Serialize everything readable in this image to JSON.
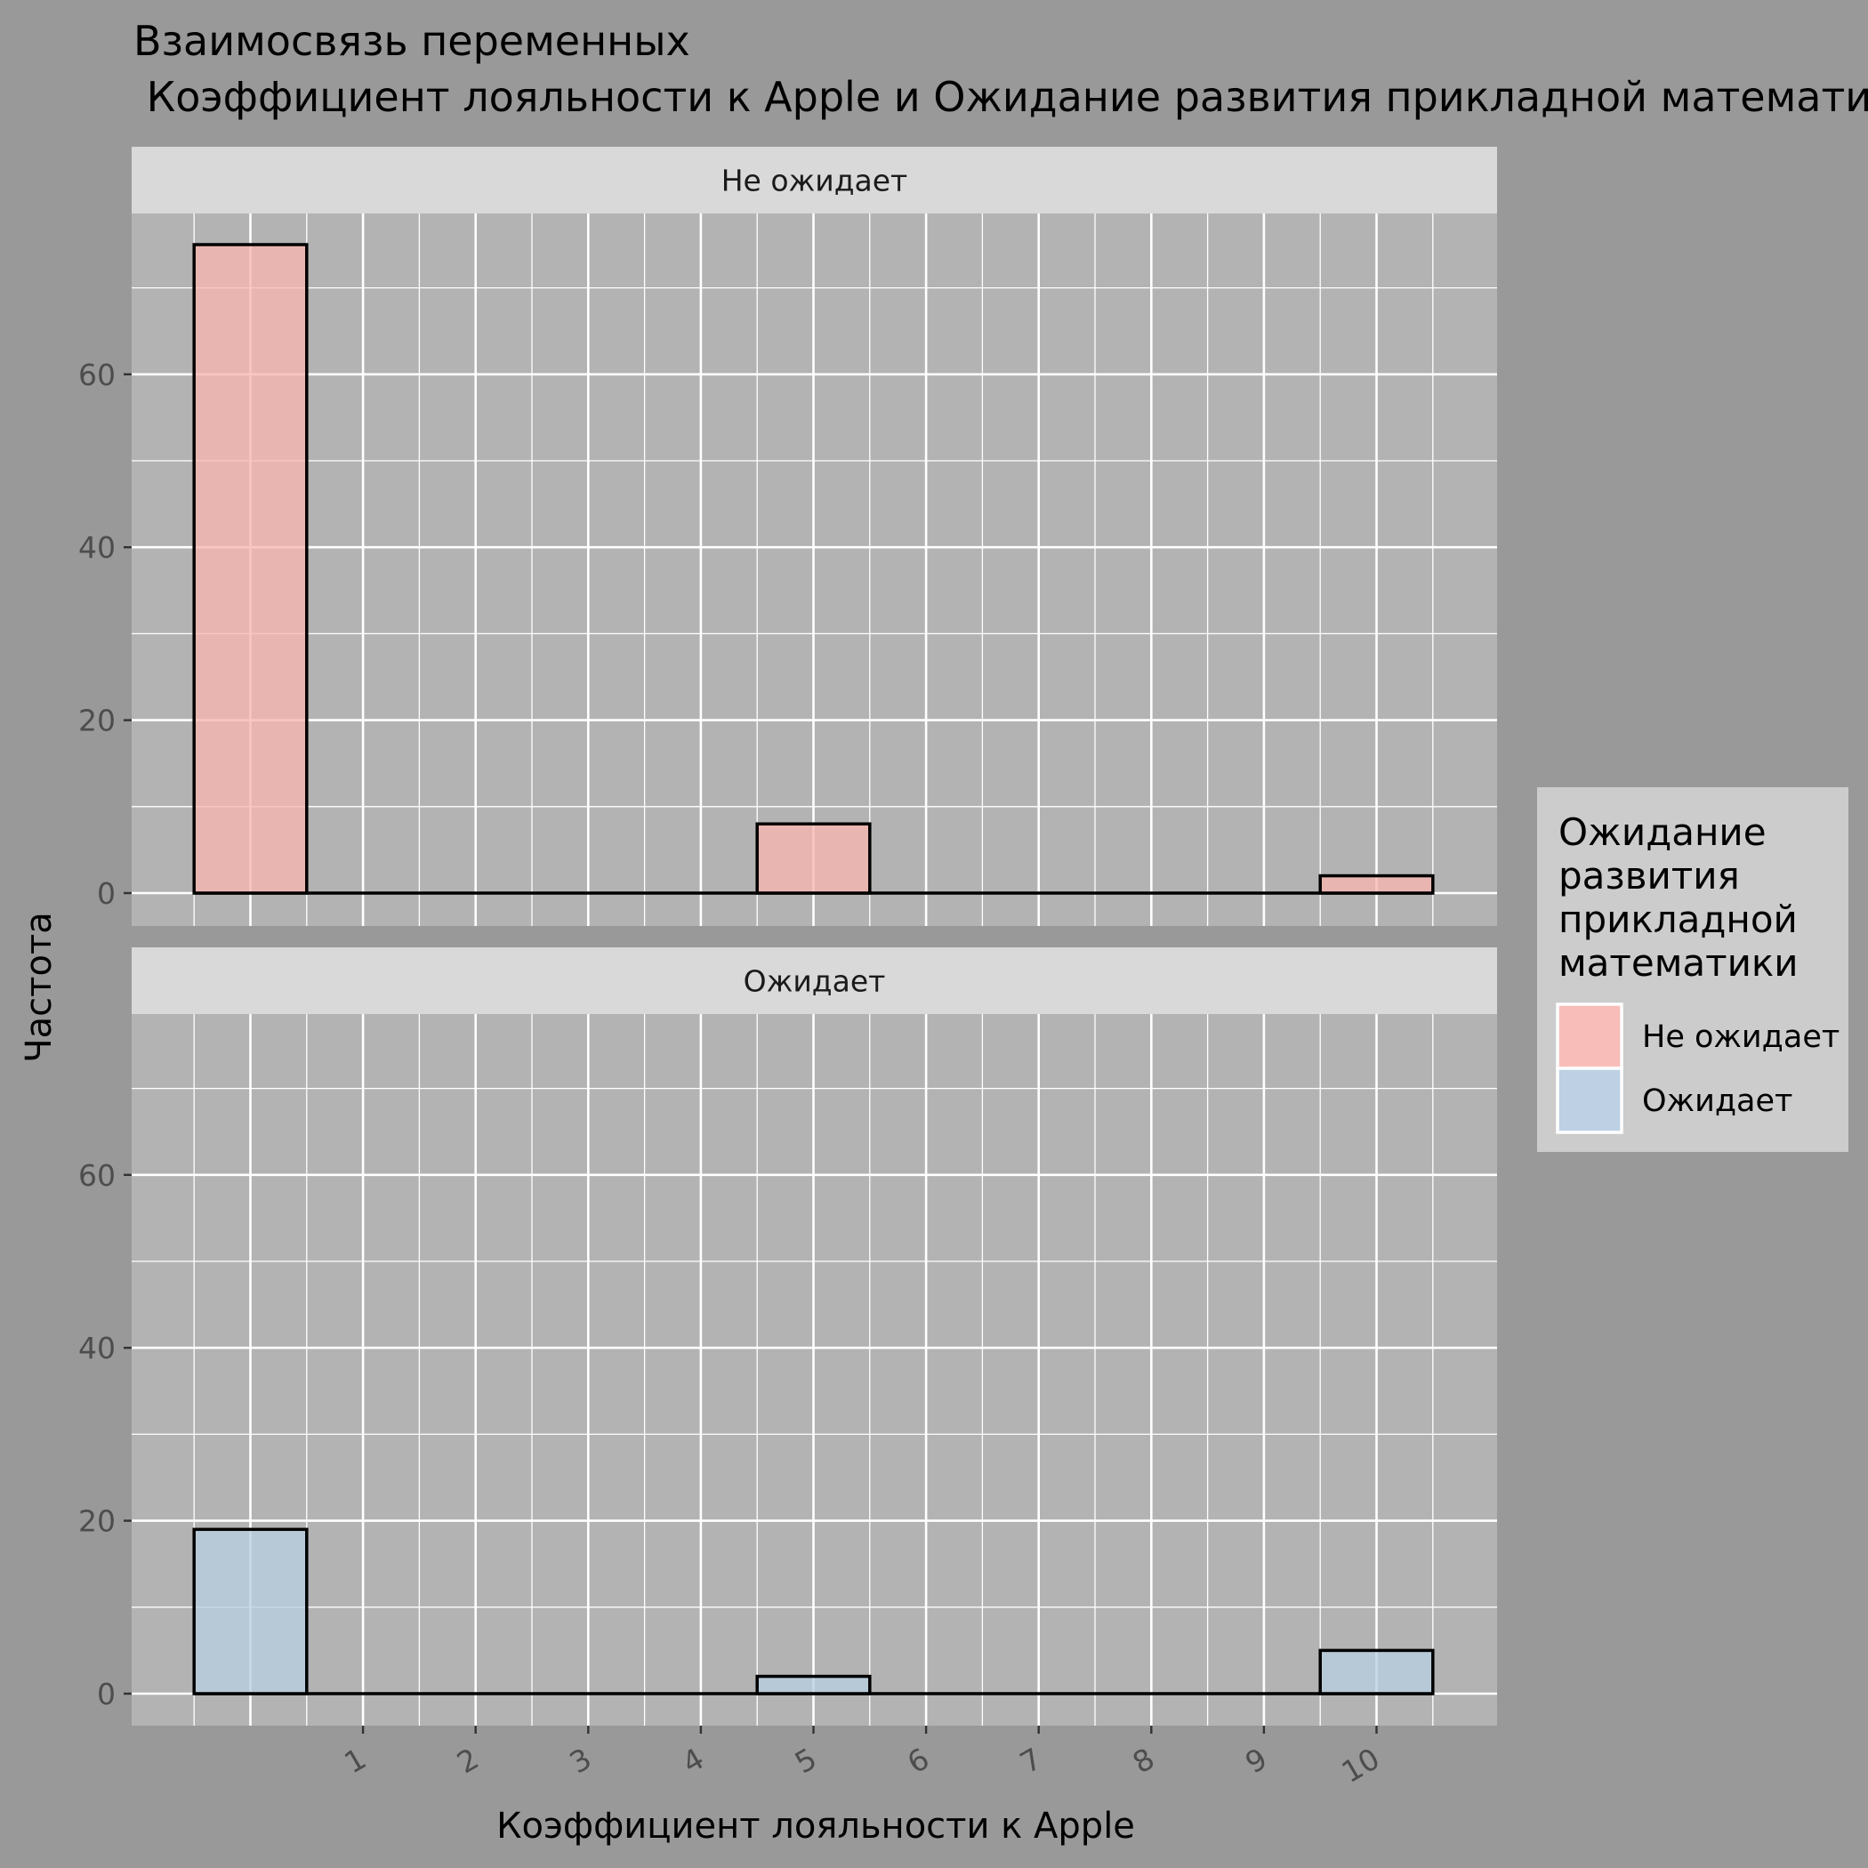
{
  "chart_data": {
    "type": "bar",
    "title_line1": "Взаимосвязь переменных",
    "title_line2": " Коэффициент лояльности к Apple и Ожидание развития прикладной математики",
    "xlabel": "Коэффициент лояльности к Apple",
    "ylabel": "Частота",
    "x_ticks": [
      "1",
      "2",
      "3",
      "4",
      "5",
      "6",
      "7",
      "8",
      "9",
      "10"
    ],
    "y_ticks": [
      0,
      20,
      40,
      60
    ],
    "ylim": [
      0,
      75
    ],
    "xlim": [
      -0.5,
      10.5
    ],
    "bin_width": 1,
    "grid": true,
    "facets": [
      {
        "label": "Не ожидает",
        "fill": "#F8B6B0",
        "bins": [
          {
            "x": 0,
            "count": 75
          },
          {
            "x": 5,
            "count": 8
          },
          {
            "x": 10,
            "count": 2
          }
        ]
      },
      {
        "label": "Ожидает",
        "fill": "#B9CFE2",
        "bins": [
          {
            "x": 0,
            "count": 19
          },
          {
            "x": 5,
            "count": 2
          },
          {
            "x": 10,
            "count": 5
          }
        ]
      }
    ],
    "legend": {
      "title_lines": [
        "Ожидание",
        "развития",
        "прикладной",
        "математики"
      ],
      "position": "right",
      "items": [
        {
          "label": "Не ожидает",
          "color": "#F8BDB8"
        },
        {
          "label": "Ожидает",
          "color": "#BDD0E4"
        }
      ]
    }
  }
}
